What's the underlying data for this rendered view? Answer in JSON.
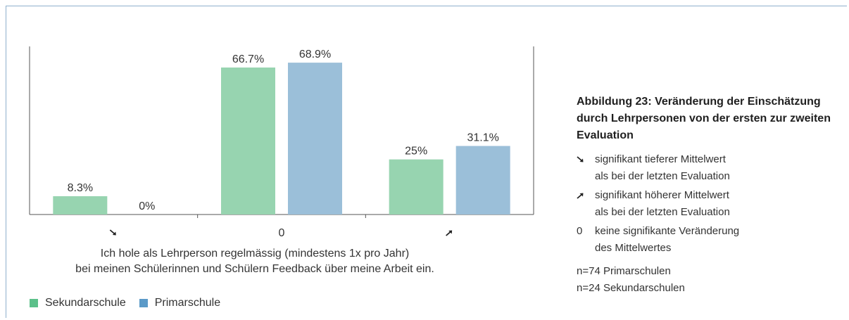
{
  "chart_data": {
    "type": "bar",
    "categories": [
      "↘",
      "0",
      "↗"
    ],
    "series": [
      {
        "name": "Sekundarschule",
        "values": [
          8.3,
          66.7,
          25
        ],
        "labels": [
          "8.3%",
          "66.7%",
          "25%"
        ],
        "color": "#97d4b0"
      },
      {
        "name": "Primarschule",
        "values": [
          0,
          68.9,
          31.1
        ],
        "labels": [
          "0%",
          "68.9%",
          "31.1%"
        ],
        "color": "#9bbfd9"
      }
    ],
    "ylim": [
      0,
      75
    ],
    "grid": false,
    "xlabel": [
      "Ich hole als Lehrperson regelmässig (mindestens 1x pro Jahr)",
      "bei meinen Schülerinnen und Schülern Feedback über meine Arbeit ein."
    ]
  },
  "info": {
    "title": "Abbildung 23: Veränderung der Einschätzung durch Lehrpersonen von der ersten zur zweiten Evaluation",
    "legend": [
      {
        "symbol": "arrow-down-right",
        "line1": "signifikant tieferer Mittelwert",
        "line2": "als bei der letzten Evaluation"
      },
      {
        "symbol": "arrow-up-right",
        "line1": "signifikant höherer Mittelwert",
        "line2": "als bei der letzten Evaluation"
      },
      {
        "symbol": "0",
        "line1": "keine signifikante Veränderung",
        "line2": "des Mittelwertes"
      }
    ],
    "n_primar": "n=74 Primarschulen",
    "n_sekundar": "n=24 Sekundarschulen"
  }
}
